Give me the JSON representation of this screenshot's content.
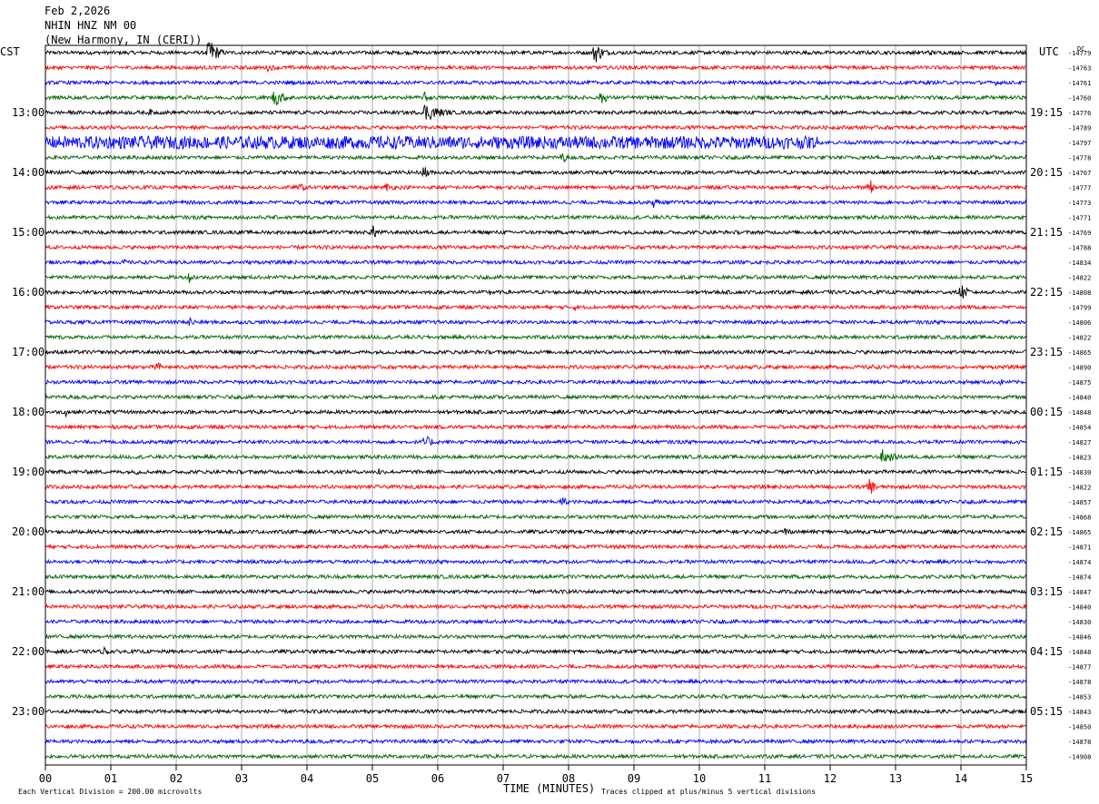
{
  "header": {
    "date": "Feb 2,2026",
    "station": "NHIN HNZ NM 00",
    "location": "(New Harmony, IN (CERI))"
  },
  "labels": {
    "left_timezone": "CST",
    "right_timezone": "UTC",
    "x_axis_title": "TIME (MINUTES)",
    "footer_left": "Each Vertical Division =  200.00 microvolts",
    "footer_right": "Traces clipped at plus/minus 5 vertical divisions",
    "dc_label": "DC"
  },
  "colors": {
    "trace_cycle": [
      "#000000",
      "#ff0000",
      "#0000ff",
      "#006400"
    ],
    "grid": "#999999",
    "frame": "#000000"
  },
  "chart_data": {
    "type": "line",
    "title": "",
    "xlabel": "TIME (MINUTES)",
    "xlim": [
      0,
      15
    ],
    "x_ticks": [
      "00",
      "01",
      "02",
      "03",
      "04",
      "05",
      "06",
      "07",
      "08",
      "09",
      "10",
      "11",
      "12",
      "13",
      "14",
      "15"
    ],
    "rows": 48,
    "left_hour_labels": [
      {
        "row": 4,
        "text": "13:00"
      },
      {
        "row": 8,
        "text": "14:00"
      },
      {
        "row": 12,
        "text": "15:00"
      },
      {
        "row": 16,
        "text": "16:00"
      },
      {
        "row": 20,
        "text": "17:00"
      },
      {
        "row": 24,
        "text": "18:00"
      },
      {
        "row": 28,
        "text": "19:00"
      },
      {
        "row": 32,
        "text": "20:00"
      },
      {
        "row": 36,
        "text": "21:00"
      },
      {
        "row": 40,
        "text": "22:00"
      },
      {
        "row": 44,
        "text": "23:00"
      }
    ],
    "right_hour_labels": [
      {
        "row": 4,
        "text": "19:15"
      },
      {
        "row": 8,
        "text": "20:15"
      },
      {
        "row": 12,
        "text": "21:15"
      },
      {
        "row": 16,
        "text": "22:15"
      },
      {
        "row": 20,
        "text": "23:15"
      },
      {
        "row": 24,
        "text": "00:15"
      },
      {
        "row": 28,
        "text": "01:15"
      },
      {
        "row": 32,
        "text": "02:15"
      },
      {
        "row": 36,
        "text": "03:15"
      },
      {
        "row": 40,
        "text": "04:15"
      },
      {
        "row": 44,
        "text": "05:15"
      }
    ],
    "dc_offsets": [
      "-14779",
      "-14763",
      "-14761",
      "-14760",
      "-14776",
      "-14789",
      "-14797",
      "-14778",
      "-14767",
      "-14777",
      "-14773",
      "-14771",
      "-14769",
      "-14788",
      "-14834",
      "-14822",
      "-14808",
      "-14799",
      "-14806",
      "-14822",
      "-14865",
      "-14890",
      "-14875",
      "-14840",
      "-14848",
      "-14854",
      "-14827",
      "-14823",
      "-14830",
      "-14822",
      "-14857",
      "-14868",
      "-14865",
      "-14871",
      "-14874",
      "-14874",
      "-14847",
      "-14840",
      "-14830",
      "-14846",
      "-14848",
      "-14877",
      "-14878",
      "-14853",
      "-14843",
      "-14850",
      "-14878",
      "-14908"
    ],
    "noise_amplitude_div": 0.9,
    "noisy_segments": [
      {
        "row": 6,
        "start_min": 0.0,
        "end_min": 11.8,
        "amplitude_div": 3.2
      }
    ],
    "events": [
      {
        "row": 0,
        "minute": 2.5,
        "amplitude_div": 9,
        "duration_min": 0.35
      },
      {
        "row": 0,
        "minute": 8.4,
        "amplitude_div": 6,
        "duration_min": 0.4
      },
      {
        "row": 0,
        "minute": 13.5,
        "amplitude_div": 2,
        "duration_min": 0.4
      },
      {
        "row": 1,
        "minute": 3.4,
        "amplitude_div": 2,
        "duration_min": 0.5
      },
      {
        "row": 2,
        "minute": 14.5,
        "amplitude_div": 2,
        "duration_min": 0.3
      },
      {
        "row": 3,
        "minute": 3.5,
        "amplitude_div": 5,
        "duration_min": 0.5
      },
      {
        "row": 3,
        "minute": 8.5,
        "amplitude_div": 4,
        "duration_min": 0.3
      },
      {
        "row": 3,
        "minute": 5.8,
        "amplitude_div": 3,
        "duration_min": 0.3
      },
      {
        "row": 4,
        "minute": 1.6,
        "amplitude_div": 2,
        "duration_min": 0.3
      },
      {
        "row": 4,
        "minute": 5.8,
        "amplitude_div": 5,
        "duration_min": 0.8
      },
      {
        "row": 7,
        "minute": 7.9,
        "amplitude_div": 3,
        "duration_min": 0.3
      },
      {
        "row": 8,
        "minute": 5.8,
        "amplitude_div": 5,
        "duration_min": 0.2
      },
      {
        "row": 9,
        "minute": 3.9,
        "amplitude_div": 2.5,
        "duration_min": 0.4
      },
      {
        "row": 9,
        "minute": 5.2,
        "amplitude_div": 2.5,
        "duration_min": 0.5
      },
      {
        "row": 9,
        "minute": 12.6,
        "amplitude_div": 5,
        "duration_min": 0.2
      },
      {
        "row": 10,
        "minute": 9.3,
        "amplitude_div": 3,
        "duration_min": 0.3
      },
      {
        "row": 12,
        "minute": 5.0,
        "amplitude_div": 4,
        "duration_min": 0.3
      },
      {
        "row": 14,
        "minute": 1.2,
        "amplitude_div": 2,
        "duration_min": 0.2
      },
      {
        "row": 15,
        "minute": 2.2,
        "amplitude_div": 3,
        "duration_min": 0.3
      },
      {
        "row": 16,
        "minute": 6.8,
        "amplitude_div": 2,
        "duration_min": 0.3
      },
      {
        "row": 16,
        "minute": 14.0,
        "amplitude_div": 5,
        "duration_min": 0.3
      },
      {
        "row": 17,
        "minute": 8.1,
        "amplitude_div": 2,
        "duration_min": 0.3
      },
      {
        "row": 18,
        "minute": 2.2,
        "amplitude_div": 3,
        "duration_min": 0.3
      },
      {
        "row": 21,
        "minute": 1.7,
        "amplitude_div": 3,
        "duration_min": 0.3
      },
      {
        "row": 21,
        "minute": 12.6,
        "amplitude_div": 2,
        "duration_min": 0.3
      },
      {
        "row": 22,
        "minute": 14.6,
        "amplitude_div": 2,
        "duration_min": 0.3
      },
      {
        "row": 24,
        "minute": 0.3,
        "amplitude_div": 2.5,
        "duration_min": 0.3
      },
      {
        "row": 26,
        "minute": 5.8,
        "amplitude_div": 3.5,
        "duration_min": 0.5
      },
      {
        "row": 27,
        "minute": 12.8,
        "amplitude_div": 4,
        "duration_min": 0.6
      },
      {
        "row": 28,
        "minute": 1.4,
        "amplitude_div": 1.5,
        "duration_min": 0.4
      },
      {
        "row": 28,
        "minute": 5.1,
        "amplitude_div": 2.5,
        "duration_min": 0.2
      },
      {
        "row": 29,
        "minute": 12.6,
        "amplitude_div": 5,
        "duration_min": 0.3
      },
      {
        "row": 30,
        "minute": 7.9,
        "amplitude_div": 3,
        "duration_min": 0.3
      },
      {
        "row": 32,
        "minute": 11.3,
        "amplitude_div": 3,
        "duration_min": 0.3
      },
      {
        "row": 40,
        "minute": 0.9,
        "amplitude_div": 2.5,
        "duration_min": 0.3
      }
    ]
  }
}
